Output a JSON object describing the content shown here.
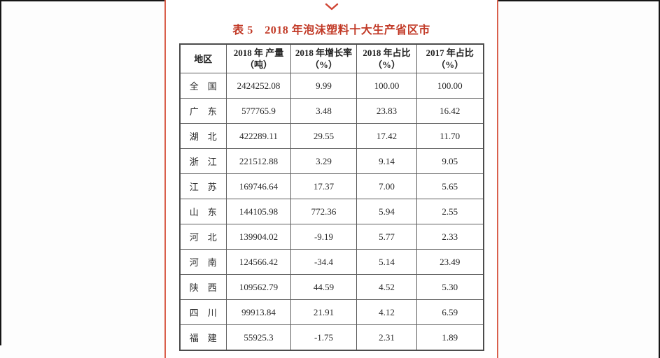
{
  "page": {
    "accent_color": "#c23b28",
    "rule_color": "#d9604c",
    "chevron_icon": "chevron-down"
  },
  "table": {
    "title": "表 5　2018 年泡沫塑料十大生产省区市",
    "columns": [
      {
        "line1": "地区",
        "line2": ""
      },
      {
        "line1": "2018 年 产量",
        "line2": "（吨）"
      },
      {
        "line1": "2018 年增长率",
        "line2": "（%）"
      },
      {
        "line1": "2018 年占比",
        "line2": "（%）"
      },
      {
        "line1": "2017 年占比",
        "line2": "（%）"
      }
    ],
    "rows": [
      [
        "全　国",
        "2424252.08",
        "9.99",
        "100.00",
        "100.00"
      ],
      [
        "广　东",
        "577765.9",
        "3.48",
        "23.83",
        "16.42"
      ],
      [
        "湖　北",
        "422289.11",
        "29.55",
        "17.42",
        "11.70"
      ],
      [
        "浙　江",
        "221512.88",
        "3.29",
        "9.14",
        "9.05"
      ],
      [
        "江　苏",
        "169746.64",
        "17.37",
        "7.00",
        "5.65"
      ],
      [
        "山　东",
        "144105.98",
        "772.36",
        "5.94",
        "2.55"
      ],
      [
        "河　北",
        "139904.02",
        "-9.19",
        "5.77",
        "2.33"
      ],
      [
        "河　南",
        "124566.42",
        "-34.4",
        "5.14",
        "23.49"
      ],
      [
        "陕　西",
        "109562.79",
        "44.59",
        "4.52",
        "5.30"
      ],
      [
        "四　川",
        "99913.84",
        "21.91",
        "4.12",
        "6.59"
      ],
      [
        "福　建",
        "55925.3",
        "-1.75",
        "2.31",
        "1.89"
      ]
    ]
  }
}
